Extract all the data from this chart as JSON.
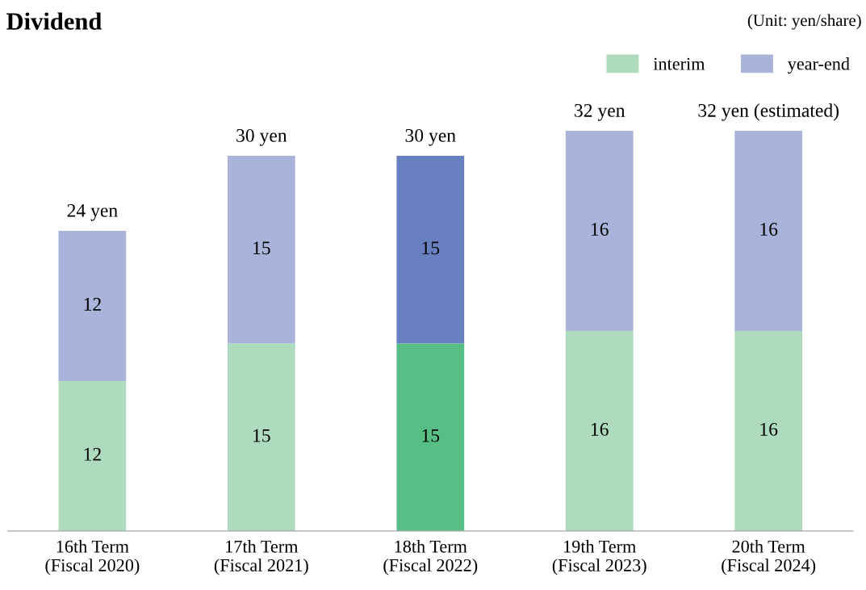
{
  "chart_data": {
    "type": "bar",
    "title": "Dividend",
    "stacked": true,
    "data_labels": true,
    "legend": "top right",
    "grid": false,
    "annotations": [
      "(Unit: yen/share)"
    ],
    "categories": [
      "16th Term\n(Fiscal 2020)",
      "17th Term\n(Fiscal 2021)",
      "18th Term\n(Fiscal 2022)",
      "19th Term\n(Fiscal 2023)",
      "20th Term\n(Fiscal 2024)"
    ],
    "series": [
      {
        "name": "interim",
        "color": "#aedbbd",
        "colors": [
          "#aedbbd",
          "#aedbbd",
          "#57bf86",
          "#aedbbd",
          "#aedbbd"
        ],
        "values": [
          12,
          15,
          15,
          16,
          16
        ]
      },
      {
        "name": "year-end",
        "color": "#aab3da",
        "colors": [
          "#aab3da",
          "#aab3da",
          "#6880c0",
          "#aab3da",
          "#aab3da"
        ],
        "values": [
          12,
          15,
          15,
          16,
          16
        ]
      }
    ],
    "totals": [
      "24 yen",
      "30 yen",
      "30 yen",
      "32 yen",
      "32 yen (estimated)"
    ]
  }
}
